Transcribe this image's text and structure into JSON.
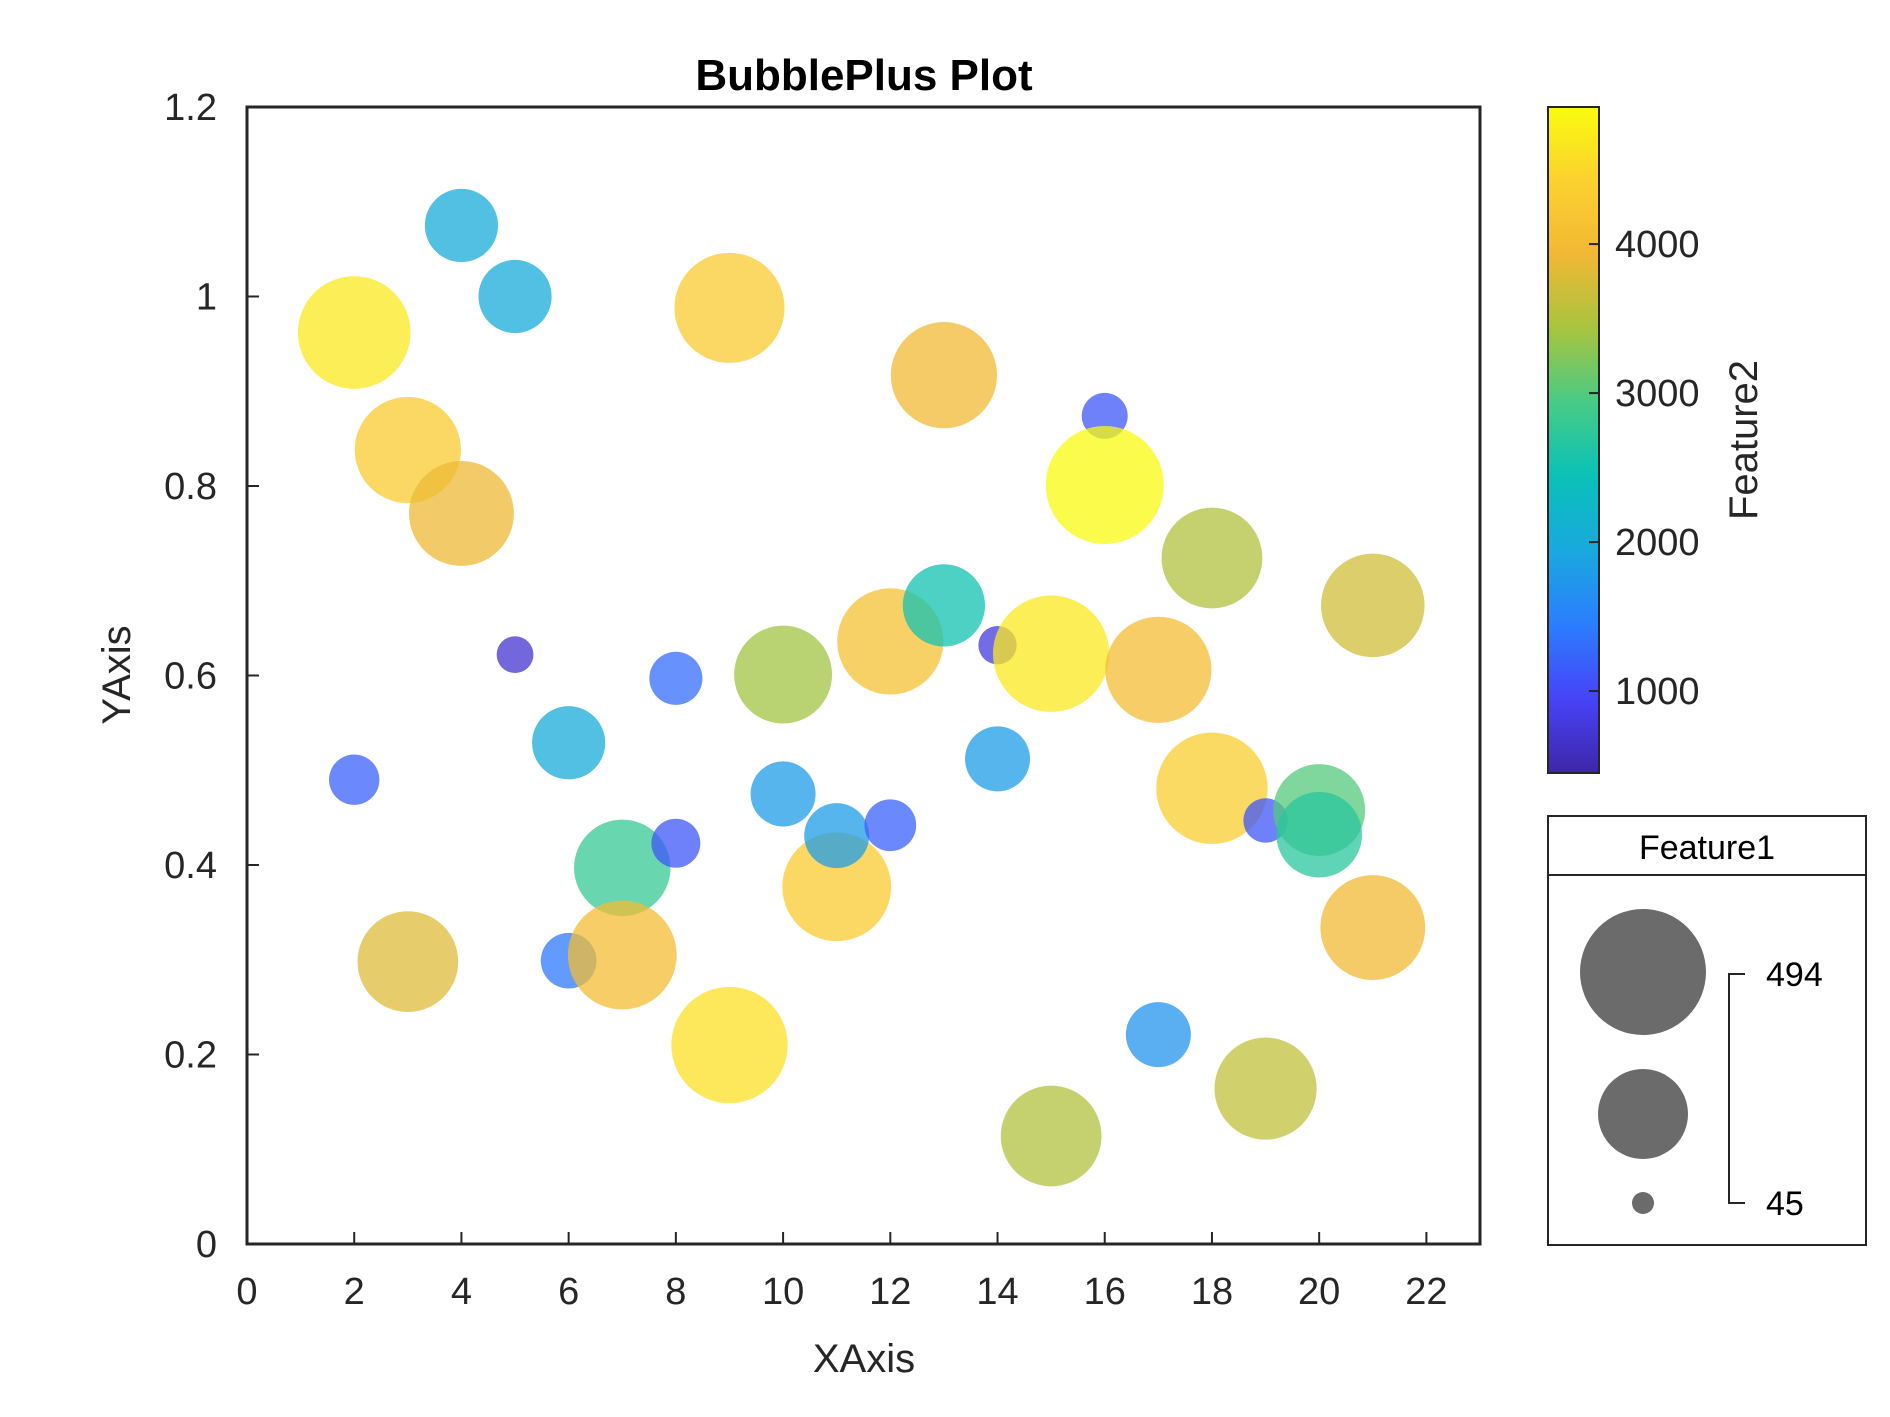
{
  "chart_data": {
    "type": "scatter",
    "title": "BubblePlus Plot",
    "xlabel": "XAxis",
    "ylabel": "YAxis",
    "xlim": [
      0,
      23
    ],
    "ylim": [
      0,
      1.2
    ],
    "xticks": [
      "0",
      "2",
      "4",
      "6",
      "8",
      "10",
      "12",
      "14",
      "16",
      "18",
      "20",
      "22"
    ],
    "yticks": [
      "0",
      "0.2",
      "0.4",
      "0.6",
      "0.8",
      "1",
      "1.2"
    ],
    "grid": false,
    "colorbar": {
      "label": "Feature2",
      "range": [
        450,
        4920
      ],
      "ticks": [
        "1000",
        "2000",
        "3000",
        "4000"
      ],
      "colormap": "parula",
      "colors": [
        "#3e26a8",
        "#4743f8",
        "#2c7dfe",
        "#1aa8df",
        "#09c1b8",
        "#47cb86",
        "#a7c43f",
        "#f1b835",
        "#fcd12f",
        "#f9fb0e"
      ]
    },
    "size_legend": {
      "title": "Feature1",
      "max_label": "494",
      "min_label": "45"
    },
    "points": [
      {
        "x": 2,
        "y": 0.962,
        "feature1": 450,
        "feature2": 4700
      },
      {
        "x": 2,
        "y": 0.49,
        "feature1": 90,
        "feature2": 1200
      },
      {
        "x": 3,
        "y": 0.838,
        "feature1": 400,
        "feature2": 4300
      },
      {
        "x": 3,
        "y": 0.298,
        "feature1": 360,
        "feature2": 3800
      },
      {
        "x": 4,
        "y": 1.075,
        "feature1": 190,
        "feature2": 2000
      },
      {
        "x": 4,
        "y": 0.771,
        "feature1": 390,
        "feature2": 3900
      },
      {
        "x": 5,
        "y": 1.0,
        "feature1": 190,
        "feature2": 2000
      },
      {
        "x": 5,
        "y": 0.622,
        "feature1": 48,
        "feature2": 700
      },
      {
        "x": 6,
        "y": 0.529,
        "feature1": 190,
        "feature2": 2000
      },
      {
        "x": 6,
        "y": 0.299,
        "feature1": 110,
        "feature2": 1400
      },
      {
        "x": 7,
        "y": 0.397,
        "feature1": 330,
        "feature2": 2800
      },
      {
        "x": 7,
        "y": 0.305,
        "feature1": 420,
        "feature2": 4000
      },
      {
        "x": 8,
        "y": 0.597,
        "feature1": 100,
        "feature2": 1300
      },
      {
        "x": 8,
        "y": 0.423,
        "feature1": 85,
        "feature2": 1100
      },
      {
        "x": 9,
        "y": 0.988,
        "feature1": 430,
        "feature2": 4300
      },
      {
        "x": 9,
        "y": 0.21,
        "feature1": 480,
        "feature2": 4600
      },
      {
        "x": 10,
        "y": 0.601,
        "feature1": 340,
        "feature2": 3400
      },
      {
        "x": 10,
        "y": 0.475,
        "feature1": 150,
        "feature2": 1800
      },
      {
        "x": 11,
        "y": 0.377,
        "feature1": 420,
        "feature2": 4300
      },
      {
        "x": 11,
        "y": 0.431,
        "feature1": 150,
        "feature2": 1800
      },
      {
        "x": 12,
        "y": 0.636,
        "feature1": 400,
        "feature2": 4100
      },
      {
        "x": 12,
        "y": 0.442,
        "feature1": 95,
        "feature2": 1200
      },
      {
        "x": 13,
        "y": 0.917,
        "feature1": 400,
        "feature2": 3950
      },
      {
        "x": 13,
        "y": 0.674,
        "feature1": 240,
        "feature2": 2500
      },
      {
        "x": 14,
        "y": 0.632,
        "feature1": 52,
        "feature2": 800
      },
      {
        "x": 14,
        "y": 0.512,
        "feature1": 150,
        "feature2": 1800
      },
      {
        "x": 15,
        "y": 0.623,
        "feature1": 480,
        "feature2": 4700
      },
      {
        "x": 15,
        "y": 0.114,
        "feature1": 360,
        "feature2": 3500
      },
      {
        "x": 16,
        "y": 0.874,
        "feature1": 75,
        "feature2": 1100
      },
      {
        "x": 16,
        "y": 0.801,
        "feature1": 494,
        "feature2": 4900
      },
      {
        "x": 17,
        "y": 0.606,
        "feature1": 400,
        "feature2": 4000
      },
      {
        "x": 17,
        "y": 0.221,
        "feature1": 150,
        "feature2": 1700
      },
      {
        "x": 18,
        "y": 0.724,
        "feature1": 360,
        "feature2": 3500
      },
      {
        "x": 18,
        "y": 0.481,
        "feature1": 440,
        "feature2": 4350
      },
      {
        "x": 19,
        "y": 0.447,
        "feature1": 70,
        "feature2": 1100
      },
      {
        "x": 19,
        "y": 0.164,
        "feature1": 370,
        "feature2": 3600
      },
      {
        "x": 20,
        "y": 0.458,
        "feature1": 300,
        "feature2": 3000
      },
      {
        "x": 20,
        "y": 0.432,
        "feature1": 260,
        "feature2": 2700
      },
      {
        "x": 21,
        "y": 0.674,
        "feature1": 380,
        "feature2": 3700
      },
      {
        "x": 21,
        "y": 0.334,
        "feature1": 390,
        "feature2": 3950
      }
    ]
  }
}
